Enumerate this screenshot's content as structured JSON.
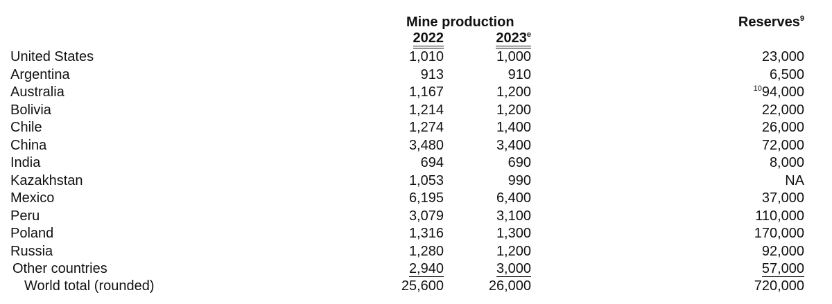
{
  "table": {
    "group_header": "Mine production",
    "columns": [
      {
        "label": "2022"
      },
      {
        "label": "2023",
        "note": "e"
      }
    ],
    "reserves_header": {
      "label": "Reserves",
      "note": "9"
    },
    "rows": [
      [
        "United States",
        "1,010",
        "1,000",
        "23,000"
      ],
      [
        "Argentina",
        "913",
        "910",
        "6,500"
      ],
      [
        "Australia",
        "1,167",
        "1,200",
        {
          "note": "10",
          "value": "94,000"
        }
      ],
      [
        "Bolivia",
        "1,214",
        "1,200",
        "22,000"
      ],
      [
        "Chile",
        "1,274",
        "1,400",
        "26,000"
      ],
      [
        "China",
        "3,480",
        "3,400",
        "72,000"
      ],
      [
        "India",
        "694",
        "690",
        "8,000"
      ],
      [
        "Kazakhstan",
        "1,053",
        "990",
        "NA"
      ],
      [
        "Mexico",
        "6,195",
        "6,400",
        "37,000"
      ],
      [
        "Peru",
        "3,079",
        "3,100",
        "110,000"
      ],
      [
        "Poland",
        "1,316",
        "1,300",
        "170,000"
      ],
      [
        "Russia",
        "1,280",
        "1,200",
        "92,000"
      ],
      [
        "Other countries",
        "2,940",
        "3,000",
        "57,000"
      ],
      [
        "World total (rounded)",
        "25,600",
        "26,000",
        "720,000"
      ]
    ]
  }
}
